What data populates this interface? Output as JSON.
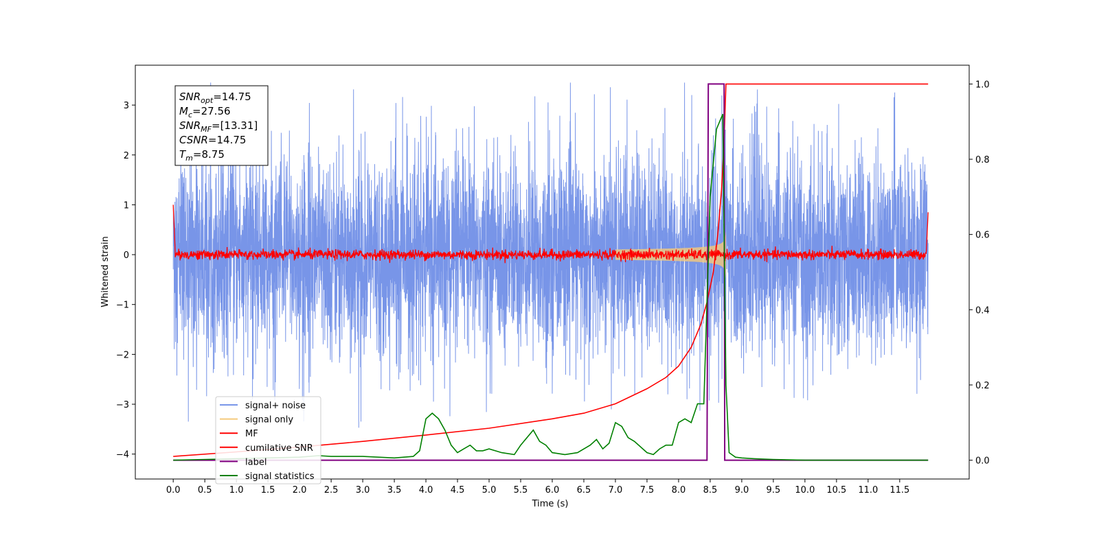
{
  "chart_data": {
    "type": "line",
    "xlabel": "Time (s)",
    "ylabel": "Whitened strain",
    "xlim": [
      -0.6,
      12.6
    ],
    "ylim": [
      -4.5,
      3.8
    ],
    "y2lim": [
      -0.05,
      1.05
    ],
    "x_ticks": [
      "0.0",
      "0.5",
      "1.0",
      "1.5",
      "2.0",
      "2.5",
      "3.0",
      "3.5",
      "4.0",
      "4.5",
      "5.0",
      "5.5",
      "6.0",
      "6.5",
      "7.0",
      "7.5",
      "8.0",
      "8.5",
      "9.0",
      "9.5",
      "10.0",
      "10.5",
      "11.0",
      "11.5"
    ],
    "y_ticks": [
      "3",
      "2",
      "1",
      "0",
      "−1",
      "−2",
      "−3",
      "−4"
    ],
    "y2_ticks": [
      "1.0",
      "0.8",
      "0.6",
      "0.4",
      "0.2",
      "0.0"
    ],
    "annotation": [
      {
        "base": "SNR",
        "sub": "opt",
        "rest": "=14.75"
      },
      {
        "base": "M",
        "sub": "c",
        "rest": "=27.56"
      },
      {
        "base": "SNR",
        "sub": "MF",
        "rest": "=[13.31]"
      },
      {
        "base": "CSNR",
        "sub": "",
        "rest": "=14.75"
      },
      {
        "base": "T",
        "sub": "m",
        "rest": "=8.75"
      }
    ],
    "legend": [
      "signal+ noise",
      "signal only",
      "MF",
      "cumilative SNR",
      "label",
      "signal statistics"
    ],
    "legend_position": "lower-left",
    "colors": {
      "signal_noise": "#7895e8",
      "signal_only": "#f5c97a",
      "mf": "#ff0000",
      "cumulative_snr": "#ff0000",
      "label": "#800080",
      "signal_statistics": "#008000"
    },
    "series": {
      "label": {
        "axis": "right",
        "x": [
          0.0,
          8.45,
          8.47,
          8.72,
          8.73,
          11.95
        ],
        "y": [
          0.0,
          0.0,
          1.0,
          1.0,
          0.0,
          0.0
        ]
      },
      "cumulative_snr": {
        "axis": "right",
        "x": [
          0.0,
          1.0,
          2.0,
          3.0,
          4.0,
          5.0,
          6.0,
          6.5,
          7.0,
          7.5,
          7.8,
          8.0,
          8.2,
          8.35,
          8.45,
          8.55,
          8.62,
          8.68,
          8.72,
          8.75,
          11.95
        ],
        "y": [
          0.01,
          0.022,
          0.035,
          0.05,
          0.067,
          0.085,
          0.11,
          0.125,
          0.15,
          0.19,
          0.22,
          0.25,
          0.3,
          0.36,
          0.42,
          0.5,
          0.6,
          0.72,
          0.85,
          1.0,
          1.0
        ]
      },
      "signal_statistics": {
        "axis": "right",
        "x": [
          0.0,
          0.5,
          1.0,
          1.5,
          2.0,
          2.3,
          2.5,
          3.0,
          3.5,
          3.8,
          3.9,
          4.0,
          4.1,
          4.2,
          4.3,
          4.4,
          4.5,
          4.6,
          4.7,
          4.8,
          4.9,
          5.0,
          5.2,
          5.4,
          5.5,
          5.6,
          5.7,
          5.8,
          5.9,
          6.0,
          6.2,
          6.4,
          6.6,
          6.7,
          6.8,
          6.9,
          7.0,
          7.1,
          7.2,
          7.3,
          7.4,
          7.5,
          7.6,
          7.7,
          7.8,
          7.9,
          8.0,
          8.1,
          8.2,
          8.3,
          8.4,
          8.5,
          8.6,
          8.65,
          8.7,
          8.72,
          8.75,
          8.8,
          8.9,
          9.0,
          9.2,
          9.5,
          10.0,
          11.0,
          11.95
        ],
        "y": [
          0.0,
          0.002,
          0.004,
          0.006,
          0.008,
          0.012,
          0.01,
          0.01,
          0.006,
          0.01,
          0.025,
          0.11,
          0.125,
          0.11,
          0.08,
          0.04,
          0.02,
          0.03,
          0.04,
          0.025,
          0.025,
          0.03,
          0.02,
          0.015,
          0.04,
          0.06,
          0.08,
          0.05,
          0.04,
          0.02,
          0.015,
          0.02,
          0.04,
          0.055,
          0.03,
          0.045,
          0.1,
          0.09,
          0.06,
          0.05,
          0.035,
          0.02,
          0.015,
          0.03,
          0.04,
          0.04,
          0.1,
          0.11,
          0.1,
          0.15,
          0.15,
          0.7,
          0.88,
          0.9,
          0.92,
          0.6,
          0.2,
          0.02,
          0.008,
          0.006,
          0.004,
          0.002,
          0.0,
          0.0,
          0.0
        ]
      }
    }
  }
}
